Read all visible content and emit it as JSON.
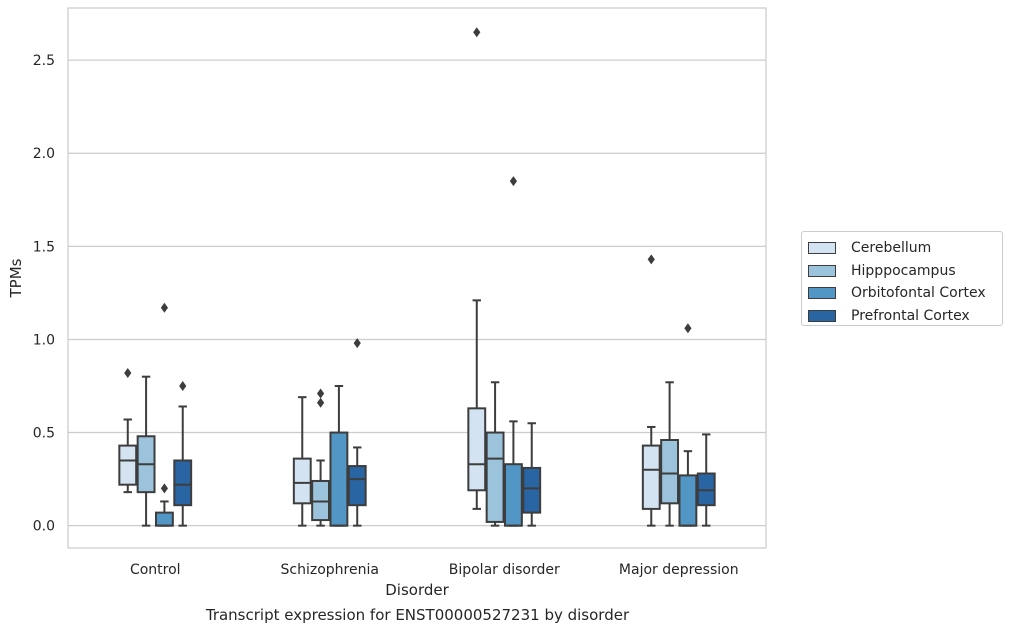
{
  "chart_data": {
    "type": "boxplot",
    "title": "Transcript expression for ENST00000527231 by disorder",
    "xlabel": "Disorder",
    "ylabel": "TPMs",
    "ylim": [
      -0.12,
      2.78
    ],
    "yticks": [
      "0.0",
      "0.5",
      "1.0",
      "1.5",
      "2.0",
      "2.5"
    ],
    "grid": true,
    "legend_position": "right",
    "categories": [
      "Control",
      "Schizophrenia",
      "Bipolar disorder",
      "Major depression"
    ],
    "series": [
      {
        "name": "Cerebellum",
        "color": "#d4e3f2",
        "boxes": [
          {
            "whisker_low": 0.18,
            "q1": 0.22,
            "median": 0.35,
            "q3": 0.43,
            "whisker_high": 0.57,
            "outliers": [
              0.82
            ]
          },
          {
            "whisker_low": 0.0,
            "q1": 0.12,
            "median": 0.23,
            "q3": 0.36,
            "whisker_high": 0.69,
            "outliers": []
          },
          {
            "whisker_low": 0.09,
            "q1": 0.19,
            "median": 0.33,
            "q3": 0.63,
            "whisker_high": 1.21,
            "outliers": [
              2.65
            ]
          },
          {
            "whisker_low": 0.0,
            "q1": 0.09,
            "median": 0.3,
            "q3": 0.43,
            "whisker_high": 0.53,
            "outliers": [
              1.43
            ]
          }
        ]
      },
      {
        "name": "Hipppocampus",
        "color": "#9bc4dc",
        "boxes": [
          {
            "whisker_low": 0.0,
            "q1": 0.18,
            "median": 0.33,
            "q3": 0.48,
            "whisker_high": 0.8,
            "outliers": []
          },
          {
            "whisker_low": 0.0,
            "q1": 0.03,
            "median": 0.13,
            "q3": 0.24,
            "whisker_high": 0.35,
            "outliers": [
              0.66,
              0.71
            ]
          },
          {
            "whisker_low": 0.0,
            "q1": 0.02,
            "median": 0.36,
            "q3": 0.5,
            "whisker_high": 0.77,
            "outliers": []
          },
          {
            "whisker_low": 0.0,
            "q1": 0.12,
            "median": 0.28,
            "q3": 0.46,
            "whisker_high": 0.77,
            "outliers": []
          }
        ]
      },
      {
        "name": "Orbitofontal Cortex",
        "color": "#5196c5",
        "boxes": [
          {
            "whisker_low": 0.0,
            "q1": 0.0,
            "median": 0.0,
            "q3": 0.07,
            "whisker_high": 0.13,
            "outliers": [
              0.2,
              1.17
            ]
          },
          {
            "whisker_low": 0.0,
            "q1": 0.0,
            "median": 0.0,
            "q3": 0.5,
            "whisker_high": 0.75,
            "outliers": []
          },
          {
            "whisker_low": 0.0,
            "q1": 0.0,
            "median": 0.0,
            "q3": 0.33,
            "whisker_high": 0.56,
            "outliers": [
              1.85
            ]
          },
          {
            "whisker_low": 0.0,
            "q1": 0.0,
            "median": 0.0,
            "q3": 0.27,
            "whisker_high": 0.4,
            "outliers": [
              1.06
            ]
          }
        ]
      },
      {
        "name": "Prefrontal Cortex",
        "color": "#2964a3",
        "boxes": [
          {
            "whisker_low": 0.0,
            "q1": 0.11,
            "median": 0.22,
            "q3": 0.35,
            "whisker_high": 0.64,
            "outliers": [
              0.75
            ]
          },
          {
            "whisker_low": 0.0,
            "q1": 0.11,
            "median": 0.25,
            "q3": 0.32,
            "whisker_high": 0.42,
            "outliers": [
              0.98
            ]
          },
          {
            "whisker_low": 0.0,
            "q1": 0.07,
            "median": 0.2,
            "q3": 0.31,
            "whisker_high": 0.55,
            "outliers": []
          },
          {
            "whisker_low": 0.0,
            "q1": 0.11,
            "median": 0.19,
            "q3": 0.28,
            "whisker_high": 0.49,
            "outliers": []
          }
        ]
      }
    ]
  }
}
